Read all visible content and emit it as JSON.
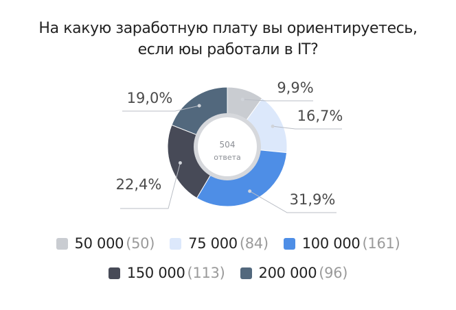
{
  "title": {
    "line1": "На какую заработную плату вы ориентируетесь,",
    "line2": "если юы работали в IT?"
  },
  "chart_data": {
    "type": "pie",
    "donut": true,
    "center_value": "504",
    "center_label": "ответа",
    "slices": [
      {
        "label": "50 000",
        "count_text": "(50)",
        "count": 50,
        "percent_text": "9,9%",
        "percent": 9.9,
        "color": "#c9ccd1"
      },
      {
        "label": "75 000",
        "count_text": "(84)",
        "count": 84,
        "percent_text": "16,7%",
        "percent": 16.7,
        "color": "#dce8fb"
      },
      {
        "label": "100 000",
        "count_text": "(161)",
        "count": 161,
        "percent_text": "31,9%",
        "percent": 31.9,
        "color": "#4e8ee6"
      },
      {
        "label": "150 000",
        "count_text": "(113)",
        "count": 113,
        "percent_text": "22,4%",
        "percent": 22.4,
        "color": "#474a57"
      },
      {
        "label": "200 000",
        "count_text": "(96)",
        "count": 96,
        "percent_text": "19,0%",
        "percent": 19.0,
        "color": "#52687d"
      }
    ]
  }
}
